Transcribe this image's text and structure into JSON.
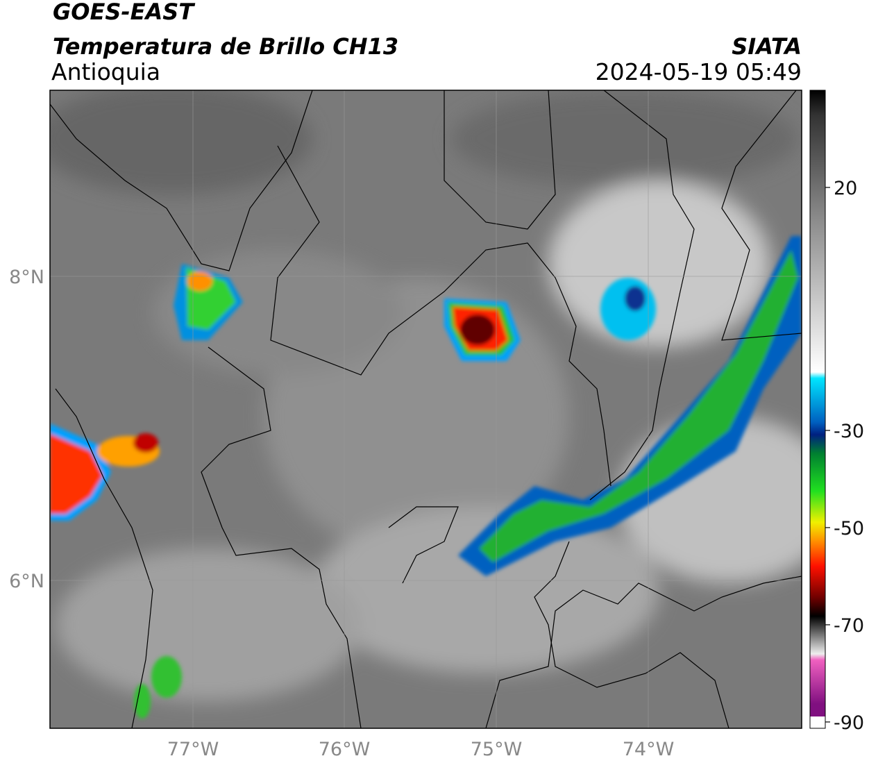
{
  "header": {
    "satellite": "GOES-EAST",
    "product": "Temperatura de Brillo CH13",
    "region": "Antioquia",
    "source": "SIATA",
    "datetime": "2024-05-19 05:49"
  },
  "map": {
    "lat_labels": [
      "8°N",
      "6°N"
    ],
    "lon_labels": [
      "77°W",
      "76°W",
      "75°W",
      "74°W"
    ]
  },
  "colorbar": {
    "lim": [
      -91.3,
      40
    ],
    "ticks": [
      20,
      -30,
      -50,
      -70,
      -90
    ]
  }
}
